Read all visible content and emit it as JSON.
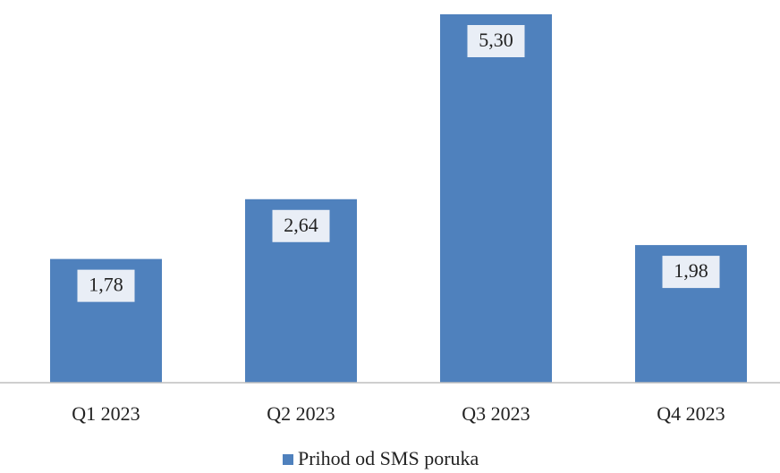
{
  "chart_data": {
    "type": "bar",
    "categories": [
      "Q1 2023",
      "Q2 2023",
      "Q3 2023",
      "Q4 2023"
    ],
    "series": [
      {
        "name": "Prihod od SMS poruka",
        "color": "#4f81bd",
        "values": [
          1.78,
          2.64,
          5.3,
          1.98
        ],
        "value_labels": [
          "1,78",
          "2,64",
          "5,30",
          "1,98"
        ]
      }
    ],
    "legend": "bottom"
  }
}
